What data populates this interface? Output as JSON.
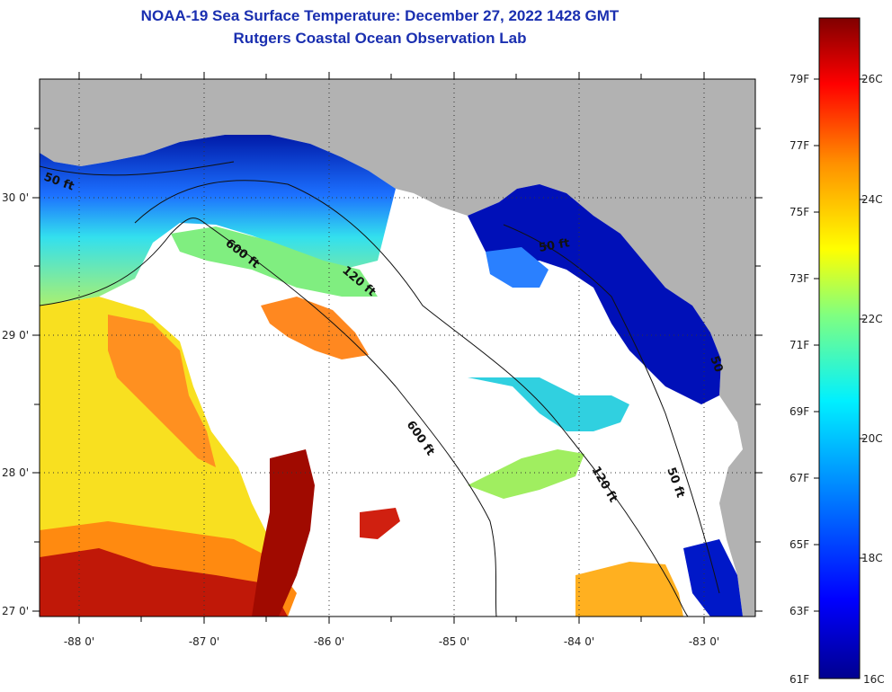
{
  "header": {
    "title_line1": "NOAA-19 Sea Surface Temperature:  December 27, 2022 1428 GMT",
    "title_line2": "Rutgers Coastal Ocean Observation Lab"
  },
  "axes": {
    "lat_labels": [
      "30 0'",
      "29 0'",
      "28 0'",
      "27 0'"
    ],
    "lon_labels": [
      "-88 0'",
      "-87 0'",
      "-86 0'",
      "-85 0'",
      "-84 0'",
      "-83 0'"
    ]
  },
  "isobaths": {
    "labels": [
      "50 ft",
      "600 ft",
      "120 ft",
      "50 ft",
      "50",
      "600 ft",
      "120 ft",
      "50 ft"
    ]
  },
  "colorbar": {
    "fahrenheit": [
      "79F",
      "77F",
      "75F",
      "73F",
      "71F",
      "69F",
      "67F",
      "65F",
      "63F",
      "61F"
    ],
    "celsius": [
      "26C",
      "24C",
      "22C",
      "20C",
      "18C",
      "16C"
    ]
  },
  "colors": {
    "land": "#b2b2b2",
    "cloud": "#ffffff",
    "title": "#1a2fb0"
  }
}
